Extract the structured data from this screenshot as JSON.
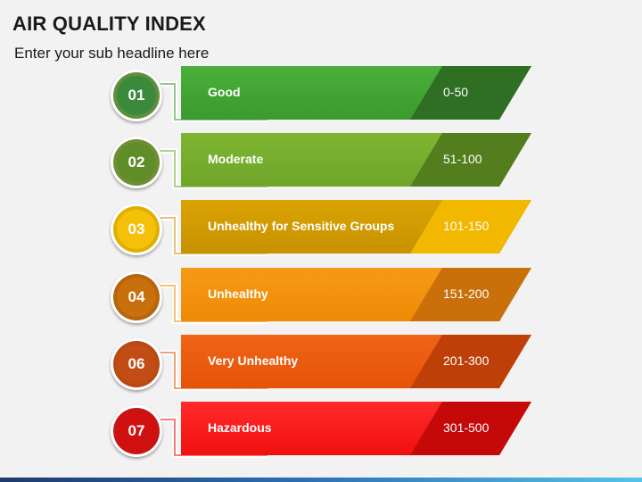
{
  "header": {
    "title": "AIR QUALITY INDEX",
    "subtitle": "Enter your sub headline here"
  },
  "items": [
    {
      "number": "01",
      "label": "Good",
      "range": "0-50",
      "colors": {
        "circle_ring": "#5f8f3e",
        "circle_fill": "#3b8a3b",
        "band": "#3a9a2e",
        "band_light": "#4caf3a",
        "tab": "#2e6f24"
      }
    },
    {
      "number": "02",
      "label": "Moderate",
      "range": "51-100",
      "colors": {
        "circle_ring": "#6e8f33",
        "circle_fill": "#5e8d2a",
        "band": "#6ea52a",
        "band_light": "#7fb531",
        "tab": "#547e1e"
      }
    },
    {
      "number": "03",
      "label": "Unhealthy for Sensitive Groups",
      "range": "101-150",
      "colors": {
        "circle_ring": "#e0b000",
        "circle_fill": "#f4c00a",
        "band": "#c89200",
        "band_light": "#d9a304",
        "tab": "#f2b800"
      }
    },
    {
      "number": "04",
      "label": "Unhealthy",
      "range": "151-200",
      "colors": {
        "circle_ring": "#b8650c",
        "circle_fill": "#c8700c",
        "band": "#f08a05",
        "band_light": "#f59a15",
        "tab": "#c9700a"
      }
    },
    {
      "number": "06",
      "label": "Very Unhealthy",
      "range": "201-300",
      "colors": {
        "circle_ring": "#b84a14",
        "circle_fill": "#c24d16",
        "band": "#e55308",
        "band_light": "#ef6418",
        "tab": "#bf3f08"
      }
    },
    {
      "number": "07",
      "label": "Hazardous",
      "range": "301-500",
      "colors": {
        "circle_ring": "#c81414",
        "circle_fill": "#d11010",
        "band": "#f01010",
        "band_light": "#ff2a2a",
        "tab": "#c50808"
      }
    }
  ]
}
